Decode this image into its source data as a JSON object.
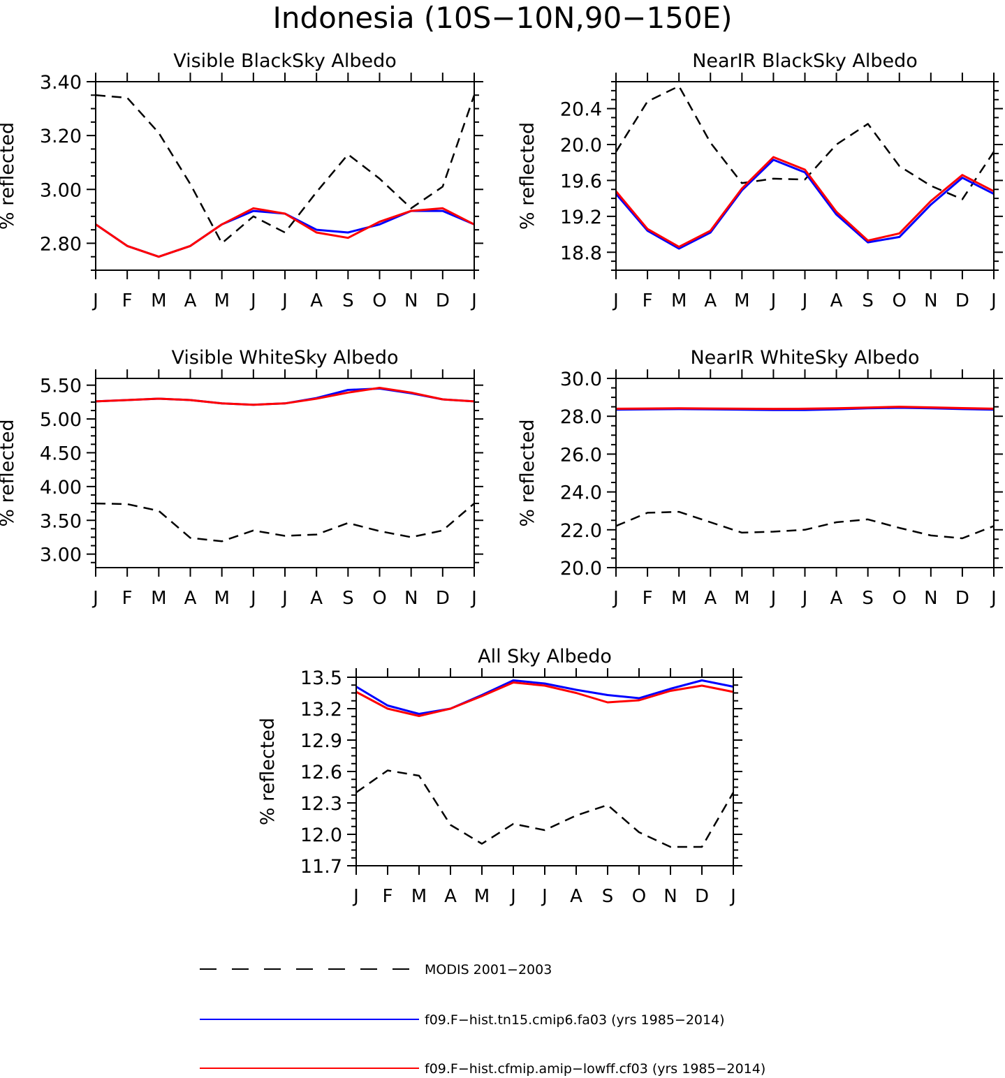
{
  "figure": {
    "title": "Indonesia (10S−10N,90−150E)"
  },
  "legend": [
    {
      "label": "MODIS 2001−2003",
      "color": "#000000",
      "dash": true
    },
    {
      "label": "f09.F−hist.tn15.cmip6.fa03 (yrs 1985−2014)",
      "color": "#0000ff",
      "dash": false
    },
    {
      "label": "f09.F−hist.cfmip.amip−lowff.cf03 (yrs 1985−2014)",
      "color": "#ff0000",
      "dash": false
    }
  ],
  "chart_data": [
    {
      "type": "line",
      "title": "Visible BlackSky Albedo",
      "ylabel": "% reflected",
      "categories": [
        "J",
        "F",
        "M",
        "A",
        "M",
        "J",
        "J",
        "A",
        "S",
        "O",
        "N",
        "D",
        "J"
      ],
      "ylim": [
        2.7,
        3.4
      ],
      "yticks": [
        "3.40",
        "3.20",
        "3.00",
        "2.80"
      ],
      "ytick_values": [
        3.4,
        3.2,
        3.0,
        2.8
      ],
      "series": [
        {
          "name": "MODIS 2001−2003",
          "color": "#000000",
          "dash": true,
          "values": [
            3.35,
            3.34,
            3.21,
            3.02,
            2.8,
            2.9,
            2.84,
            2.99,
            3.13,
            3.04,
            2.93,
            3.01,
            3.35
          ]
        },
        {
          "name": "f09.F−hist.tn15.cmip6.fa03 (yrs 1985−2014)",
          "color": "#0000ff",
          "dash": false,
          "values": [
            2.87,
            2.79,
            2.75,
            2.79,
            2.87,
            2.92,
            2.91,
            2.85,
            2.84,
            2.87,
            2.92,
            2.92,
            2.87
          ]
        },
        {
          "name": "f09.F−hist.cfmip.amip−lowff.cf03 (yrs 1985−2014)",
          "color": "#ff0000",
          "dash": false,
          "values": [
            2.87,
            2.79,
            2.75,
            2.79,
            2.87,
            2.93,
            2.91,
            2.84,
            2.82,
            2.88,
            2.92,
            2.93,
            2.87
          ]
        }
      ]
    },
    {
      "type": "line",
      "title": "NearIR BlackSky Albedo",
      "ylabel": "% reflected",
      "categories": [
        "J",
        "F",
        "M",
        "A",
        "M",
        "J",
        "J",
        "A",
        "S",
        "O",
        "N",
        "D",
        "J"
      ],
      "ylim": [
        18.6,
        20.7
      ],
      "yticks": [
        "20.4",
        "20.0",
        "19.6",
        "19.2",
        "18.8"
      ],
      "ytick_values": [
        20.4,
        20.0,
        19.6,
        19.2,
        18.8
      ],
      "series": [
        {
          "name": "MODIS 2001−2003",
          "color": "#000000",
          "dash": true,
          "values": [
            19.92,
            20.48,
            20.65,
            20.02,
            19.57,
            19.62,
            19.61,
            20.0,
            20.23,
            19.76,
            19.54,
            19.39,
            19.92
          ]
        },
        {
          "name": "f09.F−hist.tn15.cmip6.fa03 (yrs 1985−2014)",
          "color": "#0000ff",
          "dash": false,
          "values": [
            19.45,
            19.04,
            18.84,
            19.02,
            19.49,
            19.83,
            19.69,
            19.22,
            18.91,
            18.97,
            19.33,
            19.63,
            19.45
          ]
        },
        {
          "name": "f09.F−hist.cfmip.amip−lowff.cf03 (yrs 1985−2014)",
          "color": "#ff0000",
          "dash": false,
          "values": [
            19.48,
            19.06,
            18.86,
            19.04,
            19.51,
            19.86,
            19.72,
            19.25,
            18.93,
            19.01,
            19.37,
            19.66,
            19.48
          ]
        }
      ]
    },
    {
      "type": "line",
      "title": "Visible WhiteSky Albedo",
      "ylabel": "% reflected",
      "categories": [
        "J",
        "F",
        "M",
        "A",
        "M",
        "J",
        "J",
        "A",
        "S",
        "O",
        "N",
        "D",
        "J"
      ],
      "ylim": [
        2.8,
        5.6
      ],
      "yticks": [
        "5.50",
        "5.00",
        "4.50",
        "4.00",
        "3.50",
        "3.00"
      ],
      "ytick_values": [
        5.5,
        5.0,
        4.5,
        4.0,
        3.5,
        3.0
      ],
      "series": [
        {
          "name": "MODIS 2001−2003",
          "color": "#000000",
          "dash": true,
          "values": [
            3.75,
            3.74,
            3.64,
            3.24,
            3.19,
            3.35,
            3.27,
            3.29,
            3.46,
            3.34,
            3.25,
            3.35,
            3.75
          ]
        },
        {
          "name": "f09.F−hist.tn15.cmip6.fa03 (yrs 1985−2014)",
          "color": "#0000ff",
          "dash": false,
          "values": [
            5.26,
            5.28,
            5.3,
            5.28,
            5.23,
            5.21,
            5.23,
            5.31,
            5.43,
            5.45,
            5.38,
            5.29,
            5.26
          ]
        },
        {
          "name": "f09.F−hist.cfmip.amip−lowff.cf03 (yrs 1985−2014)",
          "color": "#ff0000",
          "dash": false,
          "values": [
            5.26,
            5.28,
            5.3,
            5.28,
            5.23,
            5.21,
            5.23,
            5.3,
            5.39,
            5.46,
            5.39,
            5.29,
            5.26
          ]
        }
      ]
    },
    {
      "type": "line",
      "title": "NearIR WhiteSky Albedo",
      "ylabel": "% reflected",
      "categories": [
        "J",
        "F",
        "M",
        "A",
        "M",
        "J",
        "J",
        "A",
        "S",
        "O",
        "N",
        "D",
        "J"
      ],
      "ylim": [
        20.0,
        30.0
      ],
      "yticks": [
        "30.0",
        "28.0",
        "26.0",
        "24.0",
        "22.0",
        "20.0"
      ],
      "ytick_values": [
        30.0,
        28.0,
        26.0,
        24.0,
        22.0,
        20.0
      ],
      "series": [
        {
          "name": "MODIS 2001−2003",
          "color": "#000000",
          "dash": true,
          "values": [
            22.2,
            22.9,
            22.95,
            22.4,
            21.85,
            21.9,
            22.0,
            22.4,
            22.55,
            22.1,
            21.7,
            21.55,
            22.2
          ]
        },
        {
          "name": "f09.F−hist.tn15.cmip6.fa03 (yrs 1985−2014)",
          "color": "#0000ff",
          "dash": false,
          "values": [
            28.35,
            28.37,
            28.38,
            28.37,
            28.35,
            28.33,
            28.33,
            28.37,
            28.42,
            28.45,
            28.42,
            28.38,
            28.35
          ]
        },
        {
          "name": "f09.F−hist.cfmip.amip−lowff.cf03 (yrs 1985−2014)",
          "color": "#ff0000",
          "dash": false,
          "values": [
            28.4,
            28.41,
            28.42,
            28.41,
            28.4,
            28.39,
            28.4,
            28.42,
            28.46,
            28.5,
            28.47,
            28.43,
            28.4
          ]
        }
      ]
    },
    {
      "type": "line",
      "title": "All Sky Albedo",
      "ylabel": "% reflected",
      "categories": [
        "J",
        "F",
        "M",
        "A",
        "M",
        "J",
        "J",
        "A",
        "S",
        "O",
        "N",
        "D",
        "J"
      ],
      "ylim": [
        11.7,
        13.5
      ],
      "yticks": [
        "13.5",
        "13.2",
        "12.9",
        "12.6",
        "12.3",
        "12.0",
        "11.7"
      ],
      "ytick_values": [
        13.5,
        13.2,
        12.9,
        12.6,
        12.3,
        12.0,
        11.7
      ],
      "series": [
        {
          "name": "MODIS 2001−2003",
          "color": "#000000",
          "dash": true,
          "values": [
            12.4,
            12.61,
            12.56,
            12.09,
            11.91,
            12.1,
            12.04,
            12.18,
            12.28,
            12.02,
            11.88,
            11.88,
            12.4
          ]
        },
        {
          "name": "f09.F−hist.tn15.cmip6.fa03 (yrs 1985−2014)",
          "color": "#0000ff",
          "dash": false,
          "values": [
            13.41,
            13.23,
            13.15,
            13.2,
            13.33,
            13.47,
            13.44,
            13.38,
            13.33,
            13.3,
            13.39,
            13.47,
            13.41
          ]
        },
        {
          "name": "f09.F−hist.cfmip.amip−lowff.cf03 (yrs 1985−2014)",
          "color": "#ff0000",
          "dash": false,
          "values": [
            13.36,
            13.2,
            13.13,
            13.2,
            13.32,
            13.45,
            13.42,
            13.35,
            13.26,
            13.28,
            13.37,
            13.42,
            13.36
          ]
        }
      ]
    }
  ]
}
